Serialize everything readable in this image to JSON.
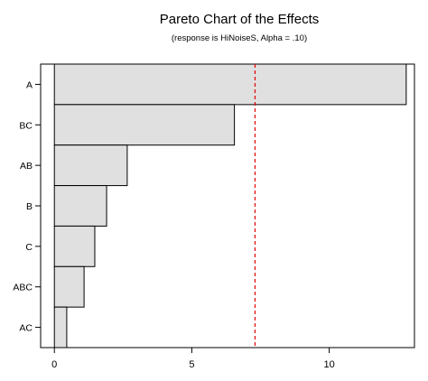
{
  "chart_data": {
    "type": "bar",
    "orientation": "horizontal",
    "title": "Pareto Chart of the Effects",
    "subtitle": "(response is HiNoiseS, Alpha = .10)",
    "categories": [
      "A",
      "BC",
      "AB",
      "B",
      "C",
      "ABC",
      "AC"
    ],
    "values": [
      12.8,
      6.55,
      2.65,
      1.9,
      1.47,
      1.08,
      0.45
    ],
    "xlim": [
      -0.5,
      13.1
    ],
    "xticks": [
      "0",
      "5",
      "10"
    ],
    "reference_line": {
      "value": 7.3,
      "color": "#e00000",
      "style": "dashed"
    },
    "grid": false,
    "bar_color": "#e0e0e0"
  }
}
